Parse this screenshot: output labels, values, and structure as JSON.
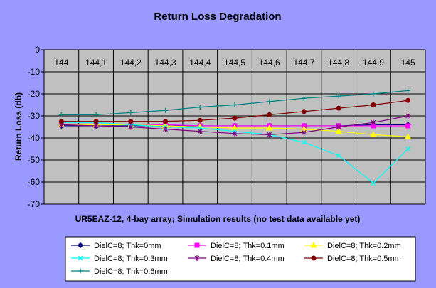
{
  "chart_data": {
    "type": "line",
    "title": "Return Loss Degradation",
    "ylabel": "Return Loss (db)",
    "xlabel": "UR5EAZ-12, 4-bay array; Simulation results (no test data available yet)",
    "categories": [
      "144",
      "144,1",
      "144,2",
      "144,3",
      "144,4",
      "144,5",
      "144,6",
      "144,7",
      "144,8",
      "144,9",
      "145"
    ],
    "ylim": [
      -70,
      0
    ],
    "yticks": [
      0,
      -10,
      -20,
      -30,
      -40,
      -50,
      -60,
      -70
    ],
    "grid": true,
    "legend_position": "bottom",
    "plot_background": "#c0c0c0",
    "page_background": "#9999ff",
    "series": [
      {
        "name": "DielC=8; Thk=0mm",
        "color": "#000080",
        "marker": "diamond",
        "values": [
          -34.5,
          -34.5,
          -34.5,
          -34.5,
          -34.5,
          -34.5,
          -34.5,
          -34.5,
          -34.5,
          -34,
          -34
        ]
      },
      {
        "name": "DielC=8; Thk=0.1mm",
        "color": "#ff00ff",
        "marker": "square",
        "values": [
          -34,
          -34,
          -34,
          -34,
          -34.5,
          -34.5,
          -34.5,
          -34.5,
          -34.5,
          -34.5,
          -34.5
        ]
      },
      {
        "name": "DielC=8; Thk=0.2mm",
        "color": "#ffff00",
        "marker": "triangle",
        "values": [
          -34,
          -34,
          -34,
          -34.5,
          -35,
          -35.5,
          -35.5,
          -36,
          -37,
          -38.5,
          -39.5
        ]
      },
      {
        "name": "DielC=8; Thk=0.3mm",
        "color": "#00ffff",
        "marker": "x",
        "values": [
          -33,
          -33,
          -34,
          -35,
          -35.5,
          -37,
          -38.5,
          -42,
          -48,
          -60.5,
          -45
        ]
      },
      {
        "name": "DielC=8; Thk=0.4mm",
        "color": "#800080",
        "marker": "star",
        "values": [
          -34,
          -34.5,
          -35,
          -36,
          -37,
          -38,
          -38.5,
          -37.5,
          -35,
          -33,
          -30
        ]
      },
      {
        "name": "DielC=8; Thk=0.5mm",
        "color": "#800000",
        "marker": "circle",
        "values": [
          -32.5,
          -32.5,
          -32.5,
          -32.5,
          -32,
          -31,
          -29.5,
          -28,
          -26.5,
          -25,
          -23
        ]
      },
      {
        "name": "DielC=8; Thk=0.6mm",
        "color": "#008080",
        "marker": "plus",
        "values": [
          -29.5,
          -29.5,
          -28.5,
          -27.5,
          -26,
          -25,
          -23.5,
          -22,
          -21,
          -20,
          -18.5
        ]
      }
    ]
  }
}
